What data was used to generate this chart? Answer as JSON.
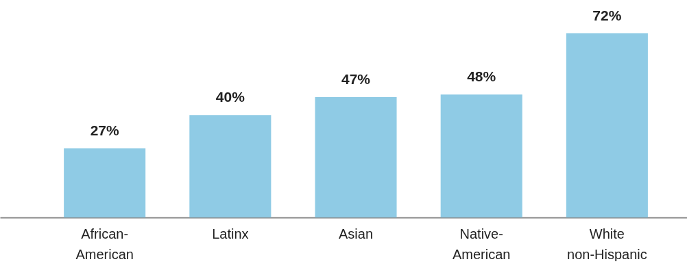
{
  "chart_data": {
    "type": "bar",
    "categories": [
      "African-American",
      "Latinx",
      "Asian",
      "Native-American",
      "White non-Hispanic"
    ],
    "values": [
      27,
      40,
      47,
      48,
      72
    ],
    "value_labels": [
      "27%",
      "40%",
      "47%",
      "48%",
      "72%"
    ],
    "color": "#8fcbe5",
    "grid": false
  }
}
